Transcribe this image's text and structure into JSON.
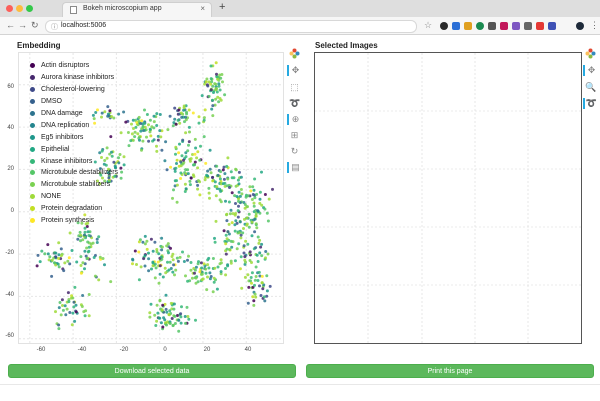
{
  "browser": {
    "tab_title": "Bokeh microscopium app",
    "tab_close": "×",
    "new_tab": "+",
    "back": "←",
    "forward": "→",
    "reload": "↻",
    "url": "localhost:5006",
    "bookmark": "☆"
  },
  "embedding": {
    "title": "Embedding",
    "y_ticks": [
      "60",
      "40",
      "20",
      "0",
      "-20",
      "-40",
      "-60"
    ],
    "x_ticks": [
      "-60",
      "-40",
      "-20",
      "0",
      "20",
      "40"
    ],
    "legend": [
      {
        "label": "Actin disruptors",
        "color": "#440154"
      },
      {
        "label": "Aurora kinase inhibitors",
        "color": "#46286d"
      },
      {
        "label": "Cholesterol-lowering",
        "color": "#3e4a89"
      },
      {
        "label": "DMSO",
        "color": "#35608d"
      },
      {
        "label": "DNA damage",
        "color": "#2c738e"
      },
      {
        "label": "DNA replication",
        "color": "#24858e"
      },
      {
        "label": "Eg5 inhibitors",
        "color": "#1f978b"
      },
      {
        "label": "Epithelial",
        "color": "#22a884"
      },
      {
        "label": "Kinase inhibitors",
        "color": "#35b779"
      },
      {
        "label": "Microtubule destabilizers",
        "color": "#55c667"
      },
      {
        "label": "Microtubule stabilizers",
        "color": "#7ad151"
      },
      {
        "label": "NONE",
        "color": "#9fda3a"
      },
      {
        "label": "Protein degradation",
        "color": "#c2df23"
      },
      {
        "label": "Protein synthesis",
        "color": "#fde725"
      }
    ]
  },
  "selected_images": {
    "title": "Selected Images"
  },
  "buttons": {
    "download": "Download selected data",
    "print": "Print this page"
  },
  "chart_data": {
    "type": "scatter",
    "title": "Embedding",
    "xlabel": "",
    "ylabel": "",
    "xlim": [
      -65,
      57
    ],
    "ylim": [
      -62,
      75
    ],
    "grid": true,
    "legend_placement": "top-left",
    "clusters": [
      {
        "x": 25,
        "y": 60,
        "spread": [
          4,
          8
        ],
        "n": 55
      },
      {
        "x": 12,
        "y": 45,
        "spread": [
          10,
          5
        ],
        "n": 45
      },
      {
        "x": -7,
        "y": 38,
        "spread": [
          9,
          7
        ],
        "n": 70
      },
      {
        "x": -22,
        "y": 20,
        "spread": [
          6,
          8
        ],
        "n": 50
      },
      {
        "x": 12,
        "y": 20,
        "spread": [
          9,
          12
        ],
        "n": 90
      },
      {
        "x": 30,
        "y": 15,
        "spread": [
          8,
          8
        ],
        "n": 60
      },
      {
        "x": 38,
        "y": -10,
        "spread": [
          10,
          14
        ],
        "n": 120
      },
      {
        "x": 42,
        "y": 5,
        "spread": [
          8,
          10
        ],
        "n": 50
      },
      {
        "x": 0,
        "y": -22,
        "spread": [
          10,
          8
        ],
        "n": 80
      },
      {
        "x": -35,
        "y": -12,
        "spread": [
          5,
          6
        ],
        "n": 30
      },
      {
        "x": -48,
        "y": -22,
        "spread": [
          7,
          6
        ],
        "n": 40
      },
      {
        "x": -40,
        "y": -45,
        "spread": [
          6,
          7
        ],
        "n": 40
      },
      {
        "x": 5,
        "y": -48,
        "spread": [
          8,
          6
        ],
        "n": 70
      },
      {
        "x": 20,
        "y": -30,
        "spread": [
          8,
          8
        ],
        "n": 60
      },
      {
        "x": 45,
        "y": -35,
        "spread": [
          6,
          8
        ],
        "n": 40
      },
      {
        "x": -25,
        "y": 45,
        "spread": [
          6,
          4
        ],
        "n": 20
      },
      {
        "x": -30,
        "y": -20,
        "spread": [
          6,
          10
        ],
        "n": 30
      }
    ]
  }
}
